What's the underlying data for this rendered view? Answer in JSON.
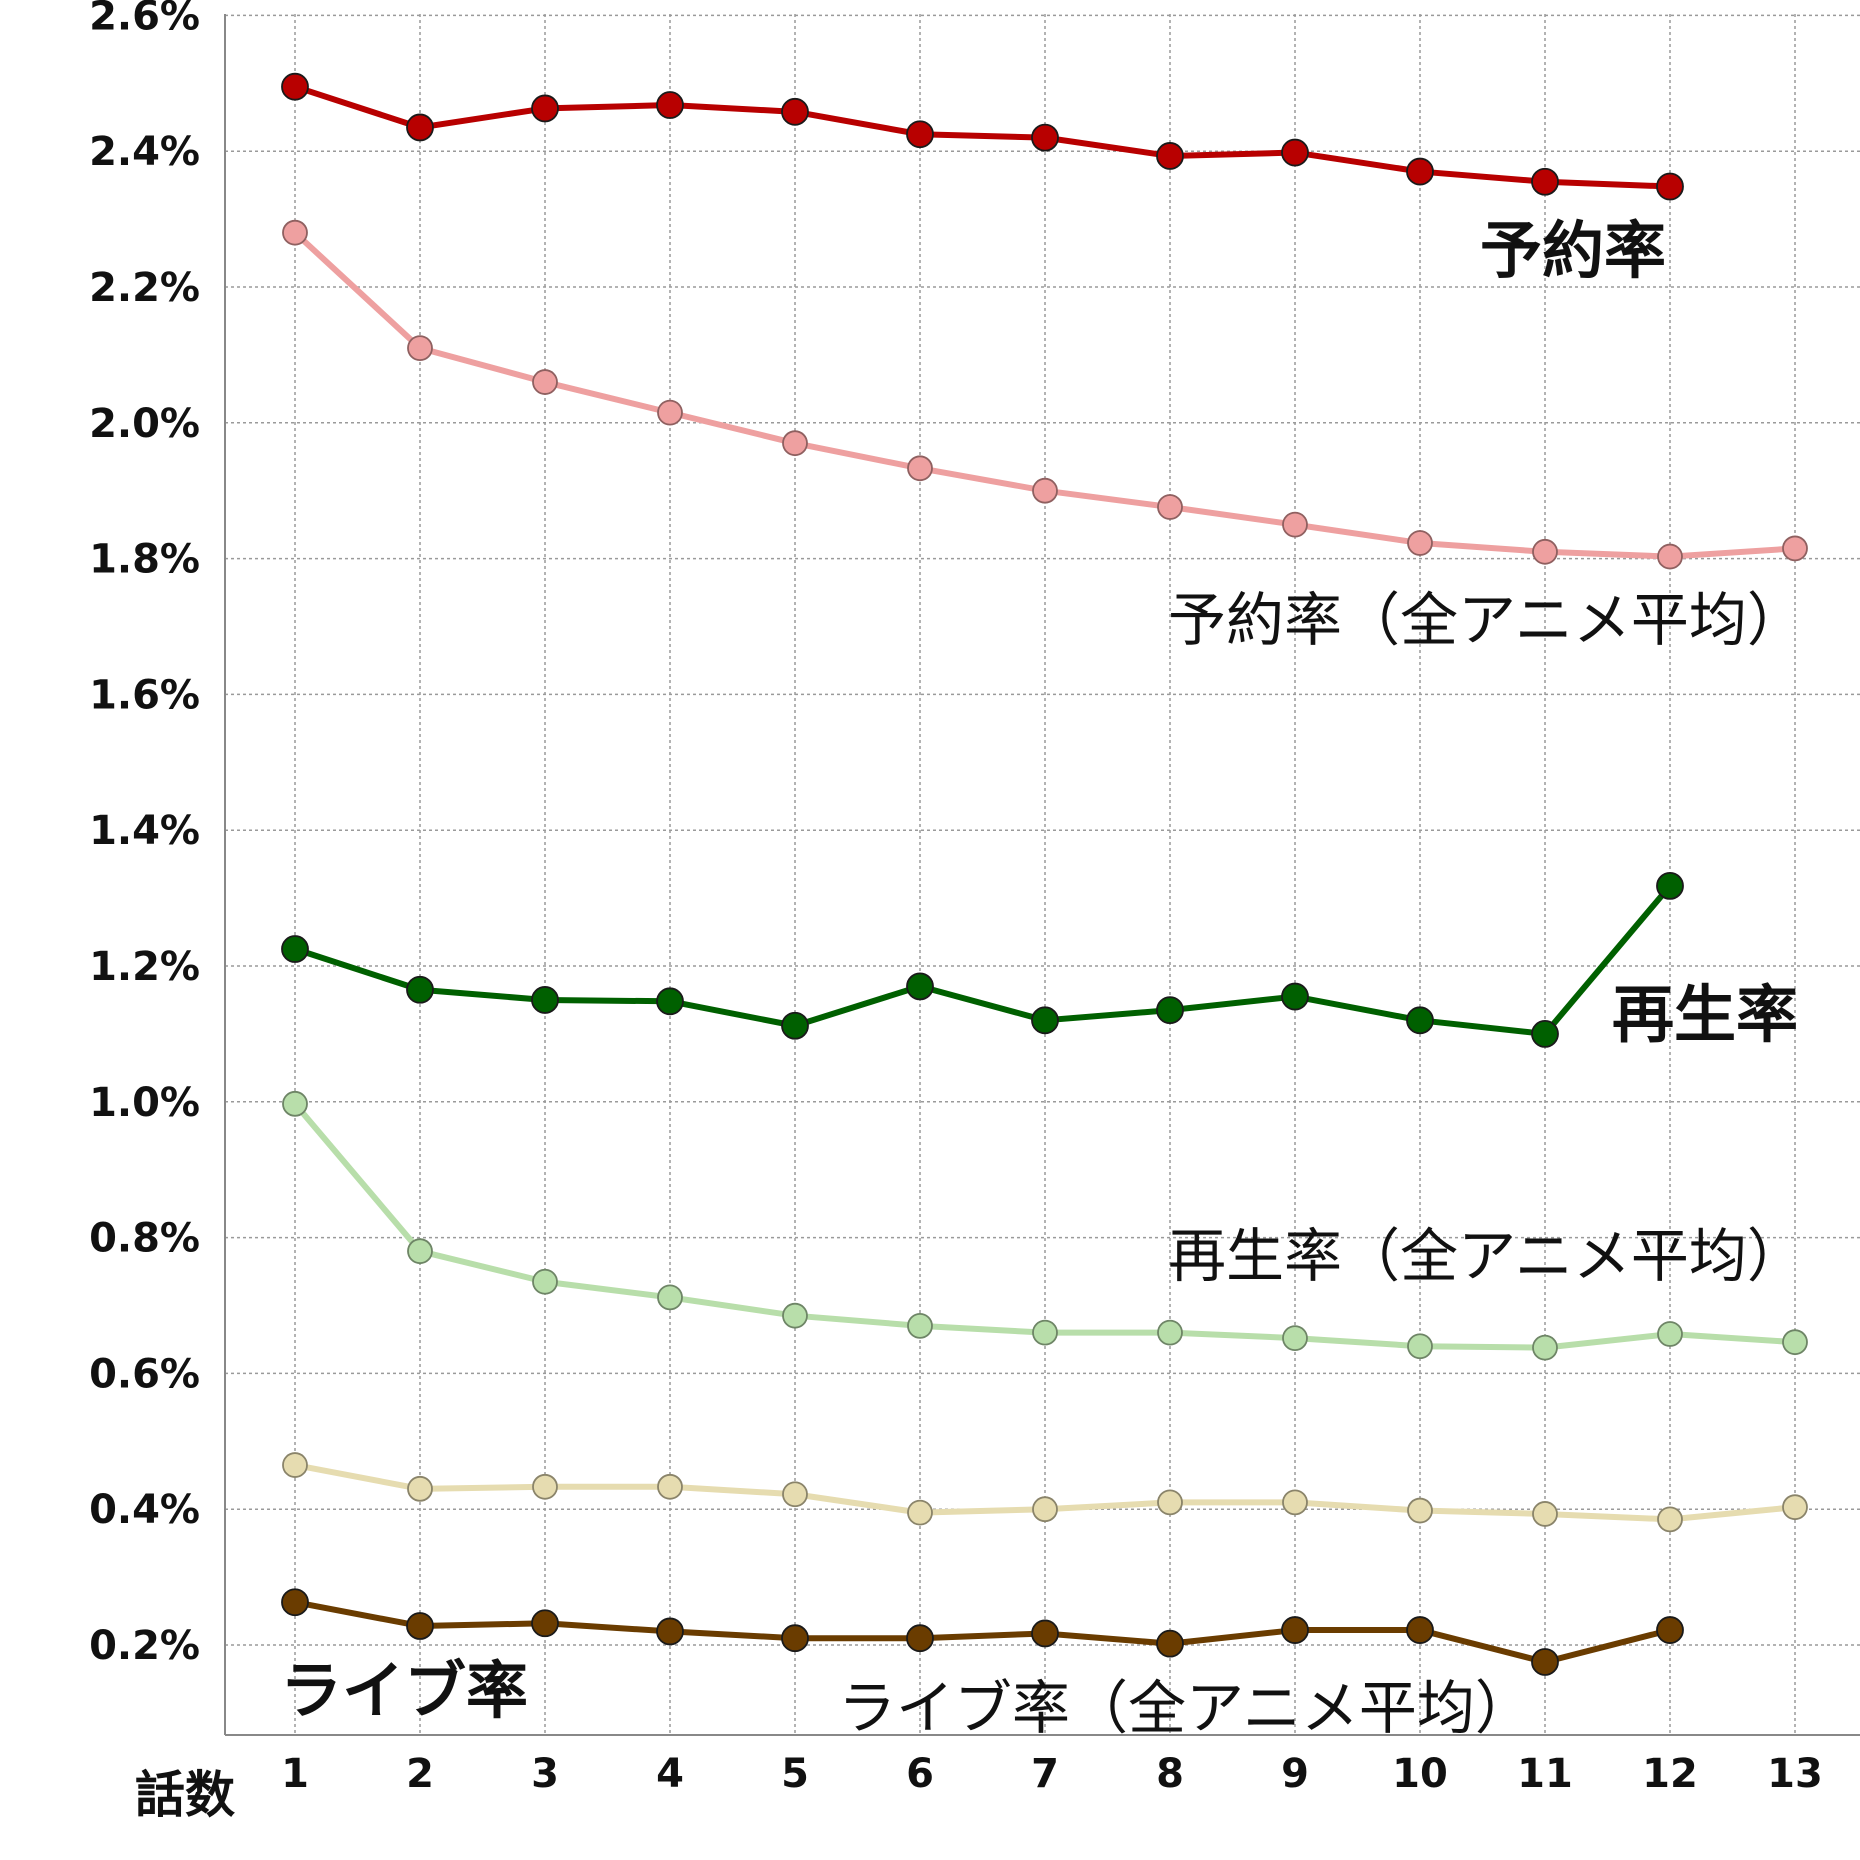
{
  "chart_data": {
    "type": "line",
    "xlabel": "話数",
    "ylabel": "",
    "x": [
      1,
      2,
      3,
      4,
      5,
      6,
      7,
      8,
      9,
      10,
      11,
      12,
      13
    ],
    "ylim": [
      0.07,
      2.65
    ],
    "yticks": [
      0.2,
      0.4,
      0.6,
      0.8,
      1.0,
      1.2,
      1.4,
      1.6,
      1.8,
      2.0,
      2.2,
      2.4,
      2.6
    ],
    "ytick_labels": [
      "0.2%",
      "0.4%",
      "0.6%",
      "0.8%",
      "1.0%",
      "1.2%",
      "1.4%",
      "1.6%",
      "1.8%",
      "2.0%",
      "2.2%",
      "2.4%",
      "2.6%"
    ],
    "grid": true,
    "series": [
      {
        "name": "予約率",
        "color": "#b80000",
        "emphasis": "bold",
        "values": [
          2.495,
          2.435,
          2.463,
          2.468,
          2.458,
          2.425,
          2.42,
          2.393,
          2.398,
          2.37,
          2.355,
          2.348,
          null
        ]
      },
      {
        "name": "予約率（全アニメ平均）",
        "color": "#eea0a0",
        "emphasis": "normal",
        "values": [
          2.28,
          2.11,
          2.06,
          2.015,
          1.97,
          1.933,
          1.9,
          1.876,
          1.85,
          1.823,
          1.81,
          1.803,
          1.815
        ]
      },
      {
        "name": "再生率",
        "color": "#006000",
        "emphasis": "bold",
        "values": [
          1.225,
          1.165,
          1.15,
          1.148,
          1.112,
          1.17,
          1.12,
          1.135,
          1.155,
          1.12,
          1.1,
          1.318,
          null
        ]
      },
      {
        "name": "再生率（全アニメ平均）",
        "color": "#b8deaa",
        "emphasis": "normal",
        "values": [
          0.997,
          0.78,
          0.735,
          0.712,
          0.685,
          0.67,
          0.66,
          0.66,
          0.652,
          0.64,
          0.638,
          0.658,
          0.646
        ]
      },
      {
        "name": "",
        "color": "#e6dcb0",
        "emphasis": "normal",
        "values": [
          0.465,
          0.43,
          0.433,
          0.433,
          0.422,
          0.395,
          0.4,
          0.41,
          0.41,
          0.398,
          0.393,
          0.385,
          0.403
        ]
      },
      {
        "name": "ライブ率",
        "color": "#6a3c00",
        "emphasis": "bold",
        "values": [
          0.263,
          0.228,
          0.232,
          0.22,
          0.21,
          0.21,
          0.217,
          0.202,
          0.222,
          0.222,
          0.175,
          0.222,
          null
        ]
      }
    ],
    "annotations": [
      "予約率",
      "予約率（全アニメ平均）",
      "再生率",
      "再生率（全アニメ平均）",
      "ライブ率",
      "ライブ率（全アニメ平均）"
    ]
  }
}
